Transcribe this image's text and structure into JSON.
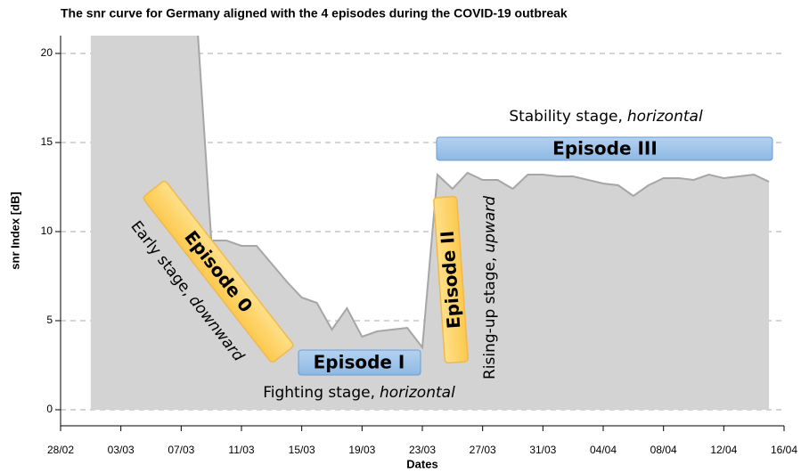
{
  "chart_data": {
    "type": "area",
    "title": "The snr curve for Germany aligned with the 4 episodes during the COVID-19 outbreak",
    "xlabel": "Dates",
    "ylabel": "snr Index [dB]",
    "x": [
      "01/03",
      "02/03",
      "03/03",
      "04/03",
      "05/03",
      "06/03",
      "07/03",
      "08/03",
      "09/03",
      "10/03",
      "11/03",
      "12/03",
      "13/03",
      "14/03",
      "15/03",
      "16/03",
      "17/03",
      "18/03",
      "19/03",
      "20/03",
      "21/03",
      "22/03",
      "23/03",
      "24/03",
      "25/03",
      "26/03",
      "27/03",
      "28/03",
      "29/03",
      "30/03",
      "31/03",
      "01/04",
      "02/04",
      "03/04",
      "04/04",
      "05/04",
      "06/04",
      "07/04",
      "08/04",
      "09/04",
      "10/04",
      "11/04",
      "12/04",
      "13/04",
      "14/04",
      "15/04"
    ],
    "series": [
      {
        "name": "snr",
        "color": "#d3d3d3",
        "values": [
          23,
          23,
          23,
          23,
          23,
          23,
          23,
          22.5,
          9.5,
          9.5,
          9.2,
          9.2,
          8.2,
          7.2,
          6.3,
          6.0,
          4.5,
          5.7,
          4.1,
          4.4,
          4.5,
          4.6,
          3.5,
          13.2,
          12.4,
          13.3,
          12.9,
          12.9,
          12.4,
          13.2,
          13.2,
          13.1,
          13.1,
          12.9,
          12.7,
          12.6,
          12.0,
          12.6,
          13.0,
          13.0,
          12.9,
          13.2,
          13.0,
          13.1,
          13.2,
          12.8
        ]
      }
    ],
    "xlim": [
      "28/02",
      "16/04"
    ],
    "xticks": [
      "28/02",
      "03/03",
      "07/03",
      "11/03",
      "15/03",
      "19/03",
      "23/03",
      "27/03",
      "31/03",
      "04/04",
      "08/04",
      "12/04",
      "16/04"
    ],
    "ylim": [
      -0.9,
      21
    ],
    "yticks": [
      0,
      5,
      10,
      15,
      20
    ],
    "grid": true,
    "annotations": [
      {
        "episode": "Episode 0",
        "stage": "Early stage,",
        "emphasis": "downward"
      },
      {
        "episode": "Episode I",
        "stage": "Fighting stage,",
        "emphasis": "horizontal"
      },
      {
        "episode": "Episode II",
        "stage": "Rising-up stage,",
        "emphasis": "upward"
      },
      {
        "episode": "Episode III",
        "stage": "Stability stage,",
        "emphasis": "horizontal"
      }
    ]
  }
}
